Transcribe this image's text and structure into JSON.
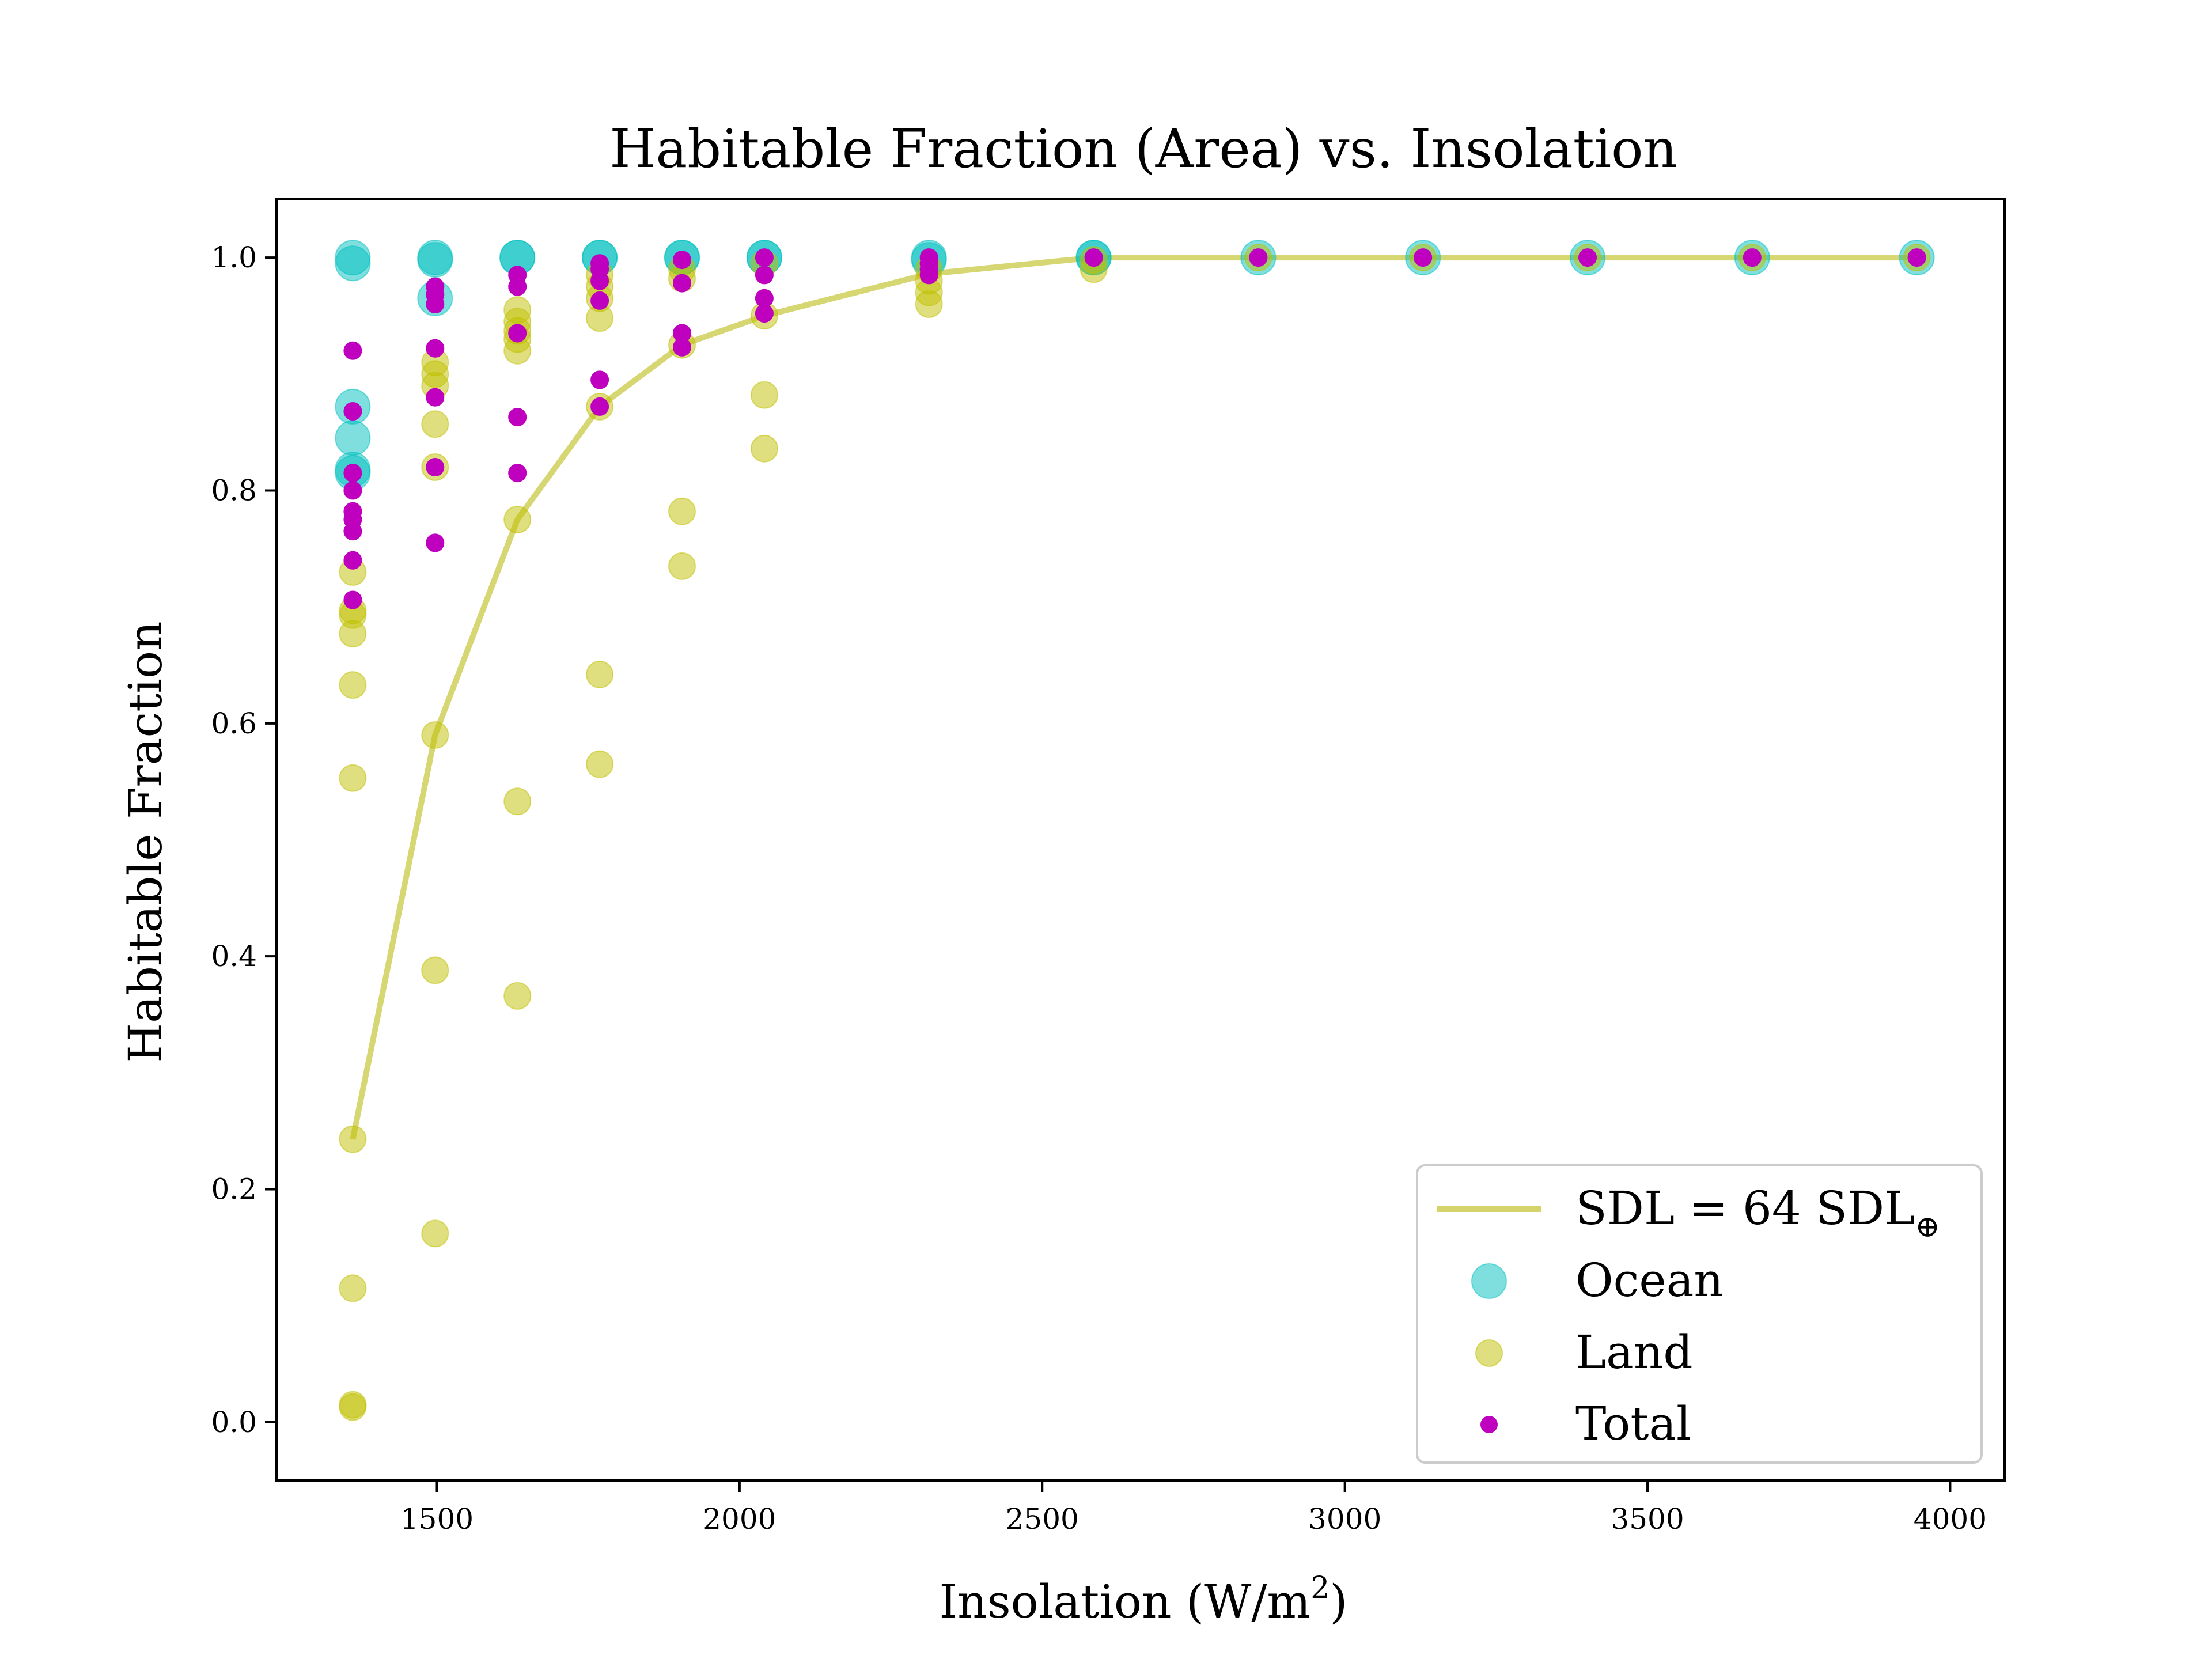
{
  "chart_data": {
    "type": "scatter",
    "title": "Habitable Fraction (Area) vs. Insolation",
    "xlabel": "Insolation (W/m",
    "xlabel_superscript": "2",
    "xlabel_suffix": ")",
    "ylabel": "Habitable Fraction",
    "xlim": [
      1235,
      4090
    ],
    "ylim": [
      -0.05,
      1.05
    ],
    "x_ticks": [
      1500,
      2000,
      2500,
      3000,
      3500,
      4000
    ],
    "x_tick_labels": [
      "1500",
      "2000",
      "2500",
      "3000",
      "3500",
      "4000"
    ],
    "y_ticks": [
      0.0,
      0.2,
      0.4,
      0.6,
      0.8,
      1.0
    ],
    "y_tick_labels": [
      "0.0",
      "0.2",
      "0.4",
      "0.6",
      "0.8",
      "1.0"
    ],
    "grid": false,
    "legend_position": "lower-right",
    "colors": {
      "line": "#d4d46a",
      "ocean": "#00bfbf",
      "land": "#bfbf00",
      "total": "#bf00bf"
    },
    "line": {
      "name": "SDL = 64 SDL",
      "name_subscript": "⊕",
      "x": [
        1361,
        1497,
        1633,
        1769,
        1905,
        2041,
        2313,
        2585,
        2857,
        3129,
        3401,
        3673,
        3945
      ],
      "y": [
        0.243,
        0.59,
        0.775,
        0.872,
        0.925,
        0.95,
        0.986,
        1.0,
        1.0,
        1.0,
        1.0,
        1.0,
        1.0
      ]
    },
    "series": [
      {
        "name": "Ocean",
        "points": [
          [
            1361,
            1.0
          ],
          [
            1361,
            0.995
          ],
          [
            1361,
            0.872
          ],
          [
            1361,
            0.845
          ],
          [
            1361,
            0.818
          ],
          [
            1361,
            0.815
          ],
          [
            1497,
            1.0
          ],
          [
            1497,
            0.998
          ],
          [
            1497,
            0.965
          ],
          [
            1633,
            1.0
          ],
          [
            1633,
            1.0
          ],
          [
            1769,
            1.0
          ],
          [
            1769,
            1.0
          ],
          [
            1905,
            1.0
          ],
          [
            1905,
            1.0
          ],
          [
            2041,
            1.0
          ],
          [
            2041,
            1.0
          ],
          [
            2313,
            1.0
          ],
          [
            2313,
            0.998
          ],
          [
            2585,
            1.0
          ],
          [
            2585,
            1.0
          ],
          [
            2857,
            1.0
          ],
          [
            3129,
            1.0
          ],
          [
            3401,
            1.0
          ],
          [
            3673,
            1.0
          ],
          [
            3945,
            1.0
          ]
        ]
      },
      {
        "name": "Land",
        "points": [
          [
            1361,
            0.73
          ],
          [
            1361,
            0.697
          ],
          [
            1361,
            0.693
          ],
          [
            1361,
            0.677
          ],
          [
            1361,
            0.633
          ],
          [
            1361,
            0.553
          ],
          [
            1361,
            0.243
          ],
          [
            1361,
            0.115
          ],
          [
            1361,
            0.015
          ],
          [
            1361,
            0.013
          ],
          [
            1497,
            0.91
          ],
          [
            1497,
            0.9
          ],
          [
            1497,
            0.89
          ],
          [
            1497,
            0.857
          ],
          [
            1497,
            0.82
          ],
          [
            1497,
            0.59
          ],
          [
            1497,
            0.388
          ],
          [
            1497,
            0.162
          ],
          [
            1633,
            0.955
          ],
          [
            1633,
            0.945
          ],
          [
            1633,
            0.937
          ],
          [
            1633,
            0.93
          ],
          [
            1633,
            0.92
          ],
          [
            1633,
            0.775
          ],
          [
            1633,
            0.533
          ],
          [
            1633,
            0.366
          ],
          [
            1769,
            0.985
          ],
          [
            1769,
            0.975
          ],
          [
            1769,
            0.965
          ],
          [
            1769,
            0.948
          ],
          [
            1769,
            0.872
          ],
          [
            1769,
            0.642
          ],
          [
            1769,
            0.565
          ],
          [
            1905,
            0.99
          ],
          [
            1905,
            0.982
          ],
          [
            1905,
            0.925
          ],
          [
            1905,
            0.782
          ],
          [
            1905,
            0.735
          ],
          [
            2041,
            0.995
          ],
          [
            2041,
            0.95
          ],
          [
            2041,
            0.882
          ],
          [
            2041,
            0.836
          ],
          [
            2313,
            0.99
          ],
          [
            2313,
            0.98
          ],
          [
            2313,
            0.97
          ],
          [
            2313,
            0.96
          ],
          [
            2585,
            0.998
          ],
          [
            2585,
            0.99
          ],
          [
            2857,
            1.0
          ],
          [
            3129,
            1.0
          ],
          [
            3401,
            1.0
          ],
          [
            3673,
            1.0
          ],
          [
            3945,
            1.0
          ]
        ]
      },
      {
        "name": "Total",
        "points": [
          [
            1361,
            0.92
          ],
          [
            1361,
            0.868
          ],
          [
            1361,
            0.815
          ],
          [
            1361,
            0.8
          ],
          [
            1361,
            0.782
          ],
          [
            1361,
            0.775
          ],
          [
            1361,
            0.765
          ],
          [
            1361,
            0.74
          ],
          [
            1361,
            0.706
          ],
          [
            1497,
            0.975
          ],
          [
            1497,
            0.968
          ],
          [
            1497,
            0.96
          ],
          [
            1497,
            0.922
          ],
          [
            1497,
            0.88
          ],
          [
            1497,
            0.82
          ],
          [
            1497,
            0.755
          ],
          [
            1633,
            0.985
          ],
          [
            1633,
            0.975
          ],
          [
            1633,
            0.935
          ],
          [
            1633,
            0.863
          ],
          [
            1633,
            0.815
          ],
          [
            1769,
            0.995
          ],
          [
            1769,
            0.99
          ],
          [
            1769,
            0.98
          ],
          [
            1769,
            0.963
          ],
          [
            1769,
            0.895
          ],
          [
            1769,
            0.872
          ],
          [
            1905,
            0.998
          ],
          [
            1905,
            0.978
          ],
          [
            1905,
            0.935
          ],
          [
            1905,
            0.923
          ],
          [
            2041,
            1.0
          ],
          [
            2041,
            0.985
          ],
          [
            2041,
            0.965
          ],
          [
            2041,
            0.952
          ],
          [
            2313,
            1.0
          ],
          [
            2313,
            0.995
          ],
          [
            2313,
            0.99
          ],
          [
            2313,
            0.985
          ],
          [
            2585,
            1.0
          ],
          [
            2857,
            1.0
          ],
          [
            3129,
            1.0
          ],
          [
            3401,
            1.0
          ],
          [
            3673,
            1.0
          ],
          [
            3945,
            1.0
          ]
        ]
      }
    ]
  }
}
